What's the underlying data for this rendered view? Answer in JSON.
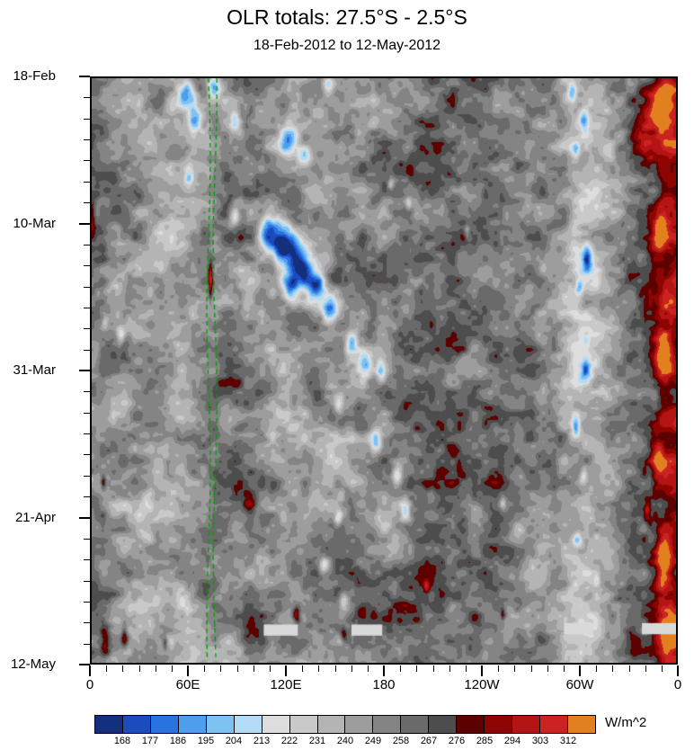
{
  "chart_data": {
    "type": "heatmap",
    "title": "OLR totals: 27.5°S - 2.5°S",
    "subtitle": "18-Feb-2012 to 12-May-2012",
    "units_label": "W/m^2",
    "x_axis": {
      "range_deg": [
        0,
        360
      ],
      "minor_step_deg": 10,
      "ticks": [
        {
          "value": 0,
          "label": "0"
        },
        {
          "value": 60,
          "label": "60E"
        },
        {
          "value": 120,
          "label": "120E"
        },
        {
          "value": 180,
          "label": "180"
        },
        {
          "value": 240,
          "label": "120W"
        },
        {
          "value": 300,
          "label": "60W"
        },
        {
          "value": 360,
          "label": "0"
        }
      ]
    },
    "y_axis": {
      "range_days": [
        0,
        84
      ],
      "minor_step_days": 3,
      "ticks": [
        {
          "day": 0,
          "label": "18-Feb"
        },
        {
          "day": 21,
          "label": "10-Mar"
        },
        {
          "day": 42,
          "label": "31-Mar"
        },
        {
          "day": 63,
          "label": "21-Apr"
        },
        {
          "day": 84,
          "label": "12-May"
        }
      ]
    },
    "colorbar": {
      "levels": [
        168,
        177,
        186,
        195,
        204,
        213,
        222,
        231,
        240,
        249,
        258,
        267,
        276,
        285,
        294,
        303,
        312
      ],
      "colors": [
        "#152f7f",
        "#1b4bbf",
        "#2a72e2",
        "#4f9ded",
        "#7fc1f1",
        "#b1dbf6",
        "#dddddd",
        "#c9c9c9",
        "#b4b4b4",
        "#9d9d9d",
        "#848484",
        "#6a6a6a",
        "#4d4d4d",
        "#5c0000",
        "#8e0400",
        "#b41414",
        "#cc2222",
        "#e2801f"
      ]
    },
    "field": {
      "base": 250,
      "lon_profile": [
        [
          0,
          8
        ],
        [
          12,
          3
        ],
        [
          28,
          -3
        ],
        [
          50,
          -5
        ],
        [
          70,
          -1
        ],
        [
          90,
          5
        ],
        [
          110,
          1
        ],
        [
          140,
          1
        ],
        [
          165,
          5
        ],
        [
          190,
          11
        ],
        [
          230,
          12
        ],
        [
          268,
          10
        ],
        [
          285,
          2
        ],
        [
          295,
          -12
        ],
        [
          306,
          -16
        ],
        [
          316,
          -8
        ],
        [
          326,
          4
        ],
        [
          338,
          12
        ],
        [
          346,
          26
        ],
        [
          352,
          40
        ],
        [
          360,
          42
        ]
      ],
      "low_anomalies": [
        [
          58,
          2,
          5,
          2,
          55
        ],
        [
          63,
          6,
          4,
          2,
          45
        ],
        [
          75,
          1,
          4,
          1.6,
          60
        ],
        [
          88,
          6,
          3,
          1.6,
          42
        ],
        [
          121,
          9,
          6,
          2.2,
          60
        ],
        [
          131,
          11,
          4,
          1.6,
          45
        ],
        [
          146,
          1,
          3,
          1.2,
          40
        ],
        [
          60,
          14,
          3,
          1.5,
          40
        ],
        [
          88,
          20,
          3,
          1.5,
          42
        ],
        [
          184,
          15,
          2,
          1,
          32
        ],
        [
          108,
          22,
          6,
          2.5,
          70
        ],
        [
          118,
          24,
          7,
          3,
          95
        ],
        [
          128,
          27,
          7,
          3,
          90
        ],
        [
          138,
          30,
          6,
          2.5,
          75
        ],
        [
          122,
          30,
          5,
          2,
          60
        ],
        [
          147,
          33,
          5,
          2,
          60
        ],
        [
          160,
          38,
          4,
          2,
          48
        ],
        [
          168,
          41,
          5,
          2,
          65
        ],
        [
          178,
          42,
          3,
          1.6,
          45
        ],
        [
          152,
          47,
          3,
          1.5,
          36
        ],
        [
          175,
          52,
          3,
          1.5,
          42
        ],
        [
          188,
          57,
          3,
          1.5,
          42
        ],
        [
          193,
          62,
          3,
          1.5,
          46
        ],
        [
          152,
          63,
          2.5,
          1.2,
          36
        ],
        [
          143,
          70,
          3,
          1.5,
          40
        ],
        [
          155,
          75,
          3,
          1.4,
          36
        ],
        [
          195,
          18,
          2,
          1,
          30
        ],
        [
          231,
          22,
          2,
          1,
          28
        ],
        [
          253,
          61,
          2,
          1,
          30
        ],
        [
          296,
          2,
          3,
          1.5,
          50
        ],
        [
          303,
          6,
          3,
          1.5,
          46
        ],
        [
          298,
          10,
          2.5,
          1.2,
          36
        ],
        [
          305,
          26,
          2.5,
          1.5,
          40
        ],
        [
          300,
          30,
          2.5,
          1.2,
          34
        ],
        [
          304,
          42,
          2.5,
          1.2,
          36
        ],
        [
          298,
          50,
          2.5,
          1.5,
          46
        ],
        [
          303,
          57,
          2.5,
          1.2,
          36
        ],
        [
          299,
          66,
          2.5,
          1.2,
          30
        ],
        [
          311,
          72,
          2,
          1,
          30
        ],
        [
          18,
          37,
          2.5,
          1.2,
          36
        ],
        [
          8,
          35,
          2,
          1,
          26
        ]
      ],
      "light_swaths": [
        [
          120,
          45,
          12,
          5,
          15
        ],
        [
          150,
          55,
          14,
          6,
          15
        ],
        [
          185,
          64,
          12,
          5,
          15
        ],
        [
          95,
          35,
          10,
          4,
          12
        ],
        [
          30,
          8,
          10,
          4,
          12
        ],
        [
          45,
          25,
          8,
          4,
          10
        ],
        [
          25,
          47,
          8,
          4,
          10
        ],
        [
          40,
          65,
          10,
          5,
          12
        ],
        [
          35,
          75,
          14,
          4,
          14
        ],
        [
          60,
          80,
          8,
          3,
          12
        ],
        [
          305,
          15,
          6,
          8,
          10
        ],
        [
          300,
          45,
          6,
          10,
          8
        ],
        [
          225,
          76,
          10,
          4,
          10
        ]
      ],
      "high_anomalies": [
        [
          352,
          4,
          8,
          5,
          38
        ],
        [
          340,
          8,
          8,
          5,
          30
        ],
        [
          350,
          22,
          5,
          3,
          45
        ],
        [
          352,
          40,
          5,
          3,
          45
        ],
        [
          348,
          55,
          4,
          3,
          40
        ],
        [
          352,
          70,
          5,
          4,
          45
        ],
        [
          355,
          80,
          6,
          3,
          50
        ],
        [
          73,
          29,
          1.3,
          2.6,
          50
        ],
        [
          7,
          58,
          1.5,
          1,
          35
        ],
        [
          126,
          77,
          2,
          1.2,
          40
        ],
        [
          155,
          80,
          2,
          1,
          32
        ],
        [
          206,
          73,
          2,
          1.2,
          32
        ],
        [
          8,
          81,
          3,
          2,
          42
        ],
        [
          20,
          80,
          2,
          1.5,
          36
        ],
        [
          45,
          81,
          1.5,
          1,
          30
        ],
        [
          97,
          62,
          4,
          6,
          14
        ],
        [
          342,
          62,
          2,
          1.5,
          32
        ],
        [
          0,
          20,
          2,
          2,
          28
        ],
        [
          253,
          77,
          1.5,
          1,
          30
        ]
      ],
      "missing_bars": [
        [
          106,
          127,
          78.5,
          80.1
        ],
        [
          160,
          179,
          78.5,
          80.1
        ],
        [
          291,
          309,
          78.3,
          79.9
        ],
        [
          339,
          360,
          78.3,
          79.9
        ]
      ],
      "track_lines": {
        "lons": [
          72,
          76
        ],
        "color": "#00a000"
      }
    }
  }
}
